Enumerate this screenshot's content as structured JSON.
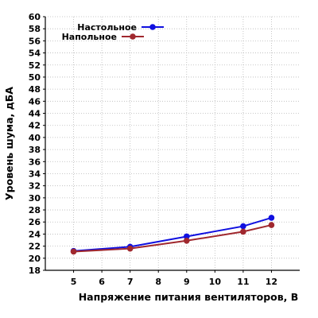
{
  "chart_data": {
    "type": "line",
    "xlabel": "Напряжение питания вентиляторов, В",
    "ylabel": "Уровень шума, дБА",
    "x_ticks": [
      "5",
      "6",
      "7",
      "8",
      "9",
      "10",
      "11",
      "12"
    ],
    "xlim": [
      4,
      13
    ],
    "ylim": [
      18,
      60
    ],
    "y_tick_step": 2,
    "grid": true,
    "legend_position": "top-left",
    "series": [
      {
        "name": "Настольное",
        "color": "#1010e0",
        "x": [
          5,
          7,
          9,
          11,
          12
        ],
        "y": [
          21.2,
          21.9,
          23.6,
          25.3,
          26.7
        ]
      },
      {
        "name": "Напольное",
        "color": "#a0282e",
        "x": [
          5,
          7,
          9,
          11,
          12
        ],
        "y": [
          21.1,
          21.6,
          22.9,
          24.4,
          25.5
        ]
      }
    ]
  }
}
